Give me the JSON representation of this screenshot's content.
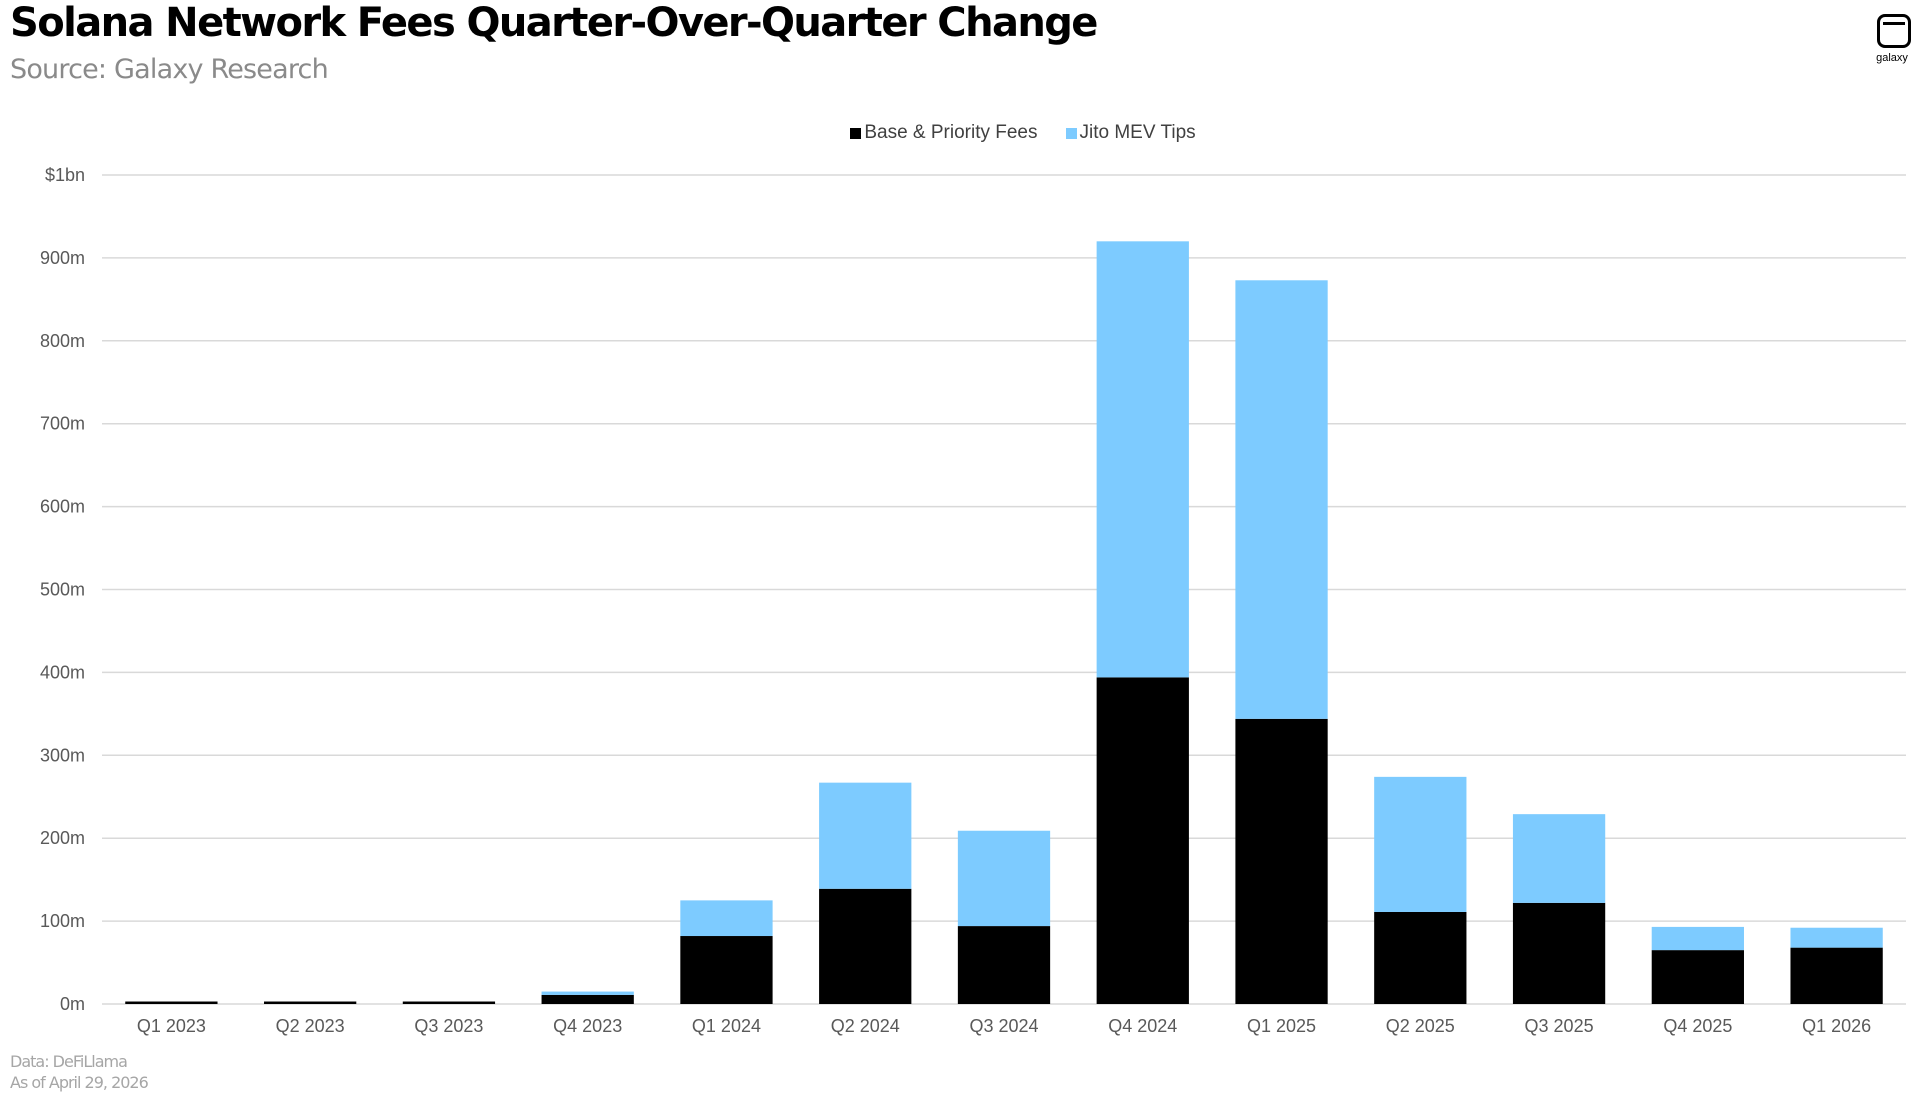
{
  "header": {
    "title": "Solana Network Fees Quarter-Over-Quarter Change",
    "subtitle": "Source: Galaxy Research",
    "logo_text": "galaxy"
  },
  "footer": {
    "data_source": "Data: DeFiLlama",
    "as_of": "As of April 29, 2026"
  },
  "chart_data": {
    "type": "bar",
    "stacked": true,
    "categories": [
      "Q1 2023",
      "Q2 2023",
      "Q3 2023",
      "Q4 2023",
      "Q1 2024",
      "Q2 2024",
      "Q3 2024",
      "Q4 2024",
      "Q1 2025",
      "Q2 2025",
      "Q3 2025",
      "Q4 2025",
      "Q1 2026"
    ],
    "series": [
      {
        "name": "Base & Priority Fees",
        "color": "#000000",
        "values": [
          3,
          3,
          3,
          11,
          82,
          139,
          94,
          394,
          344,
          111,
          122,
          65,
          68
        ]
      },
      {
        "name": "Jito MEV Tips",
        "color": "#7DCBFF",
        "values": [
          0,
          0,
          0,
          4,
          43,
          128,
          115,
          526,
          529,
          163,
          107,
          28,
          24
        ]
      }
    ],
    "ylim": [
      0,
      1000
    ],
    "yticks": [
      0,
      100,
      200,
      300,
      400,
      500,
      600,
      700,
      800,
      900,
      1000
    ],
    "ytick_labels": [
      "0m",
      "100m",
      "200m",
      "300m",
      "400m",
      "500m",
      "600m",
      "700m",
      "800m",
      "900m",
      "$1bn"
    ],
    "grid": true,
    "legend_position": "top-center",
    "xlabel": "",
    "ylabel": ""
  }
}
